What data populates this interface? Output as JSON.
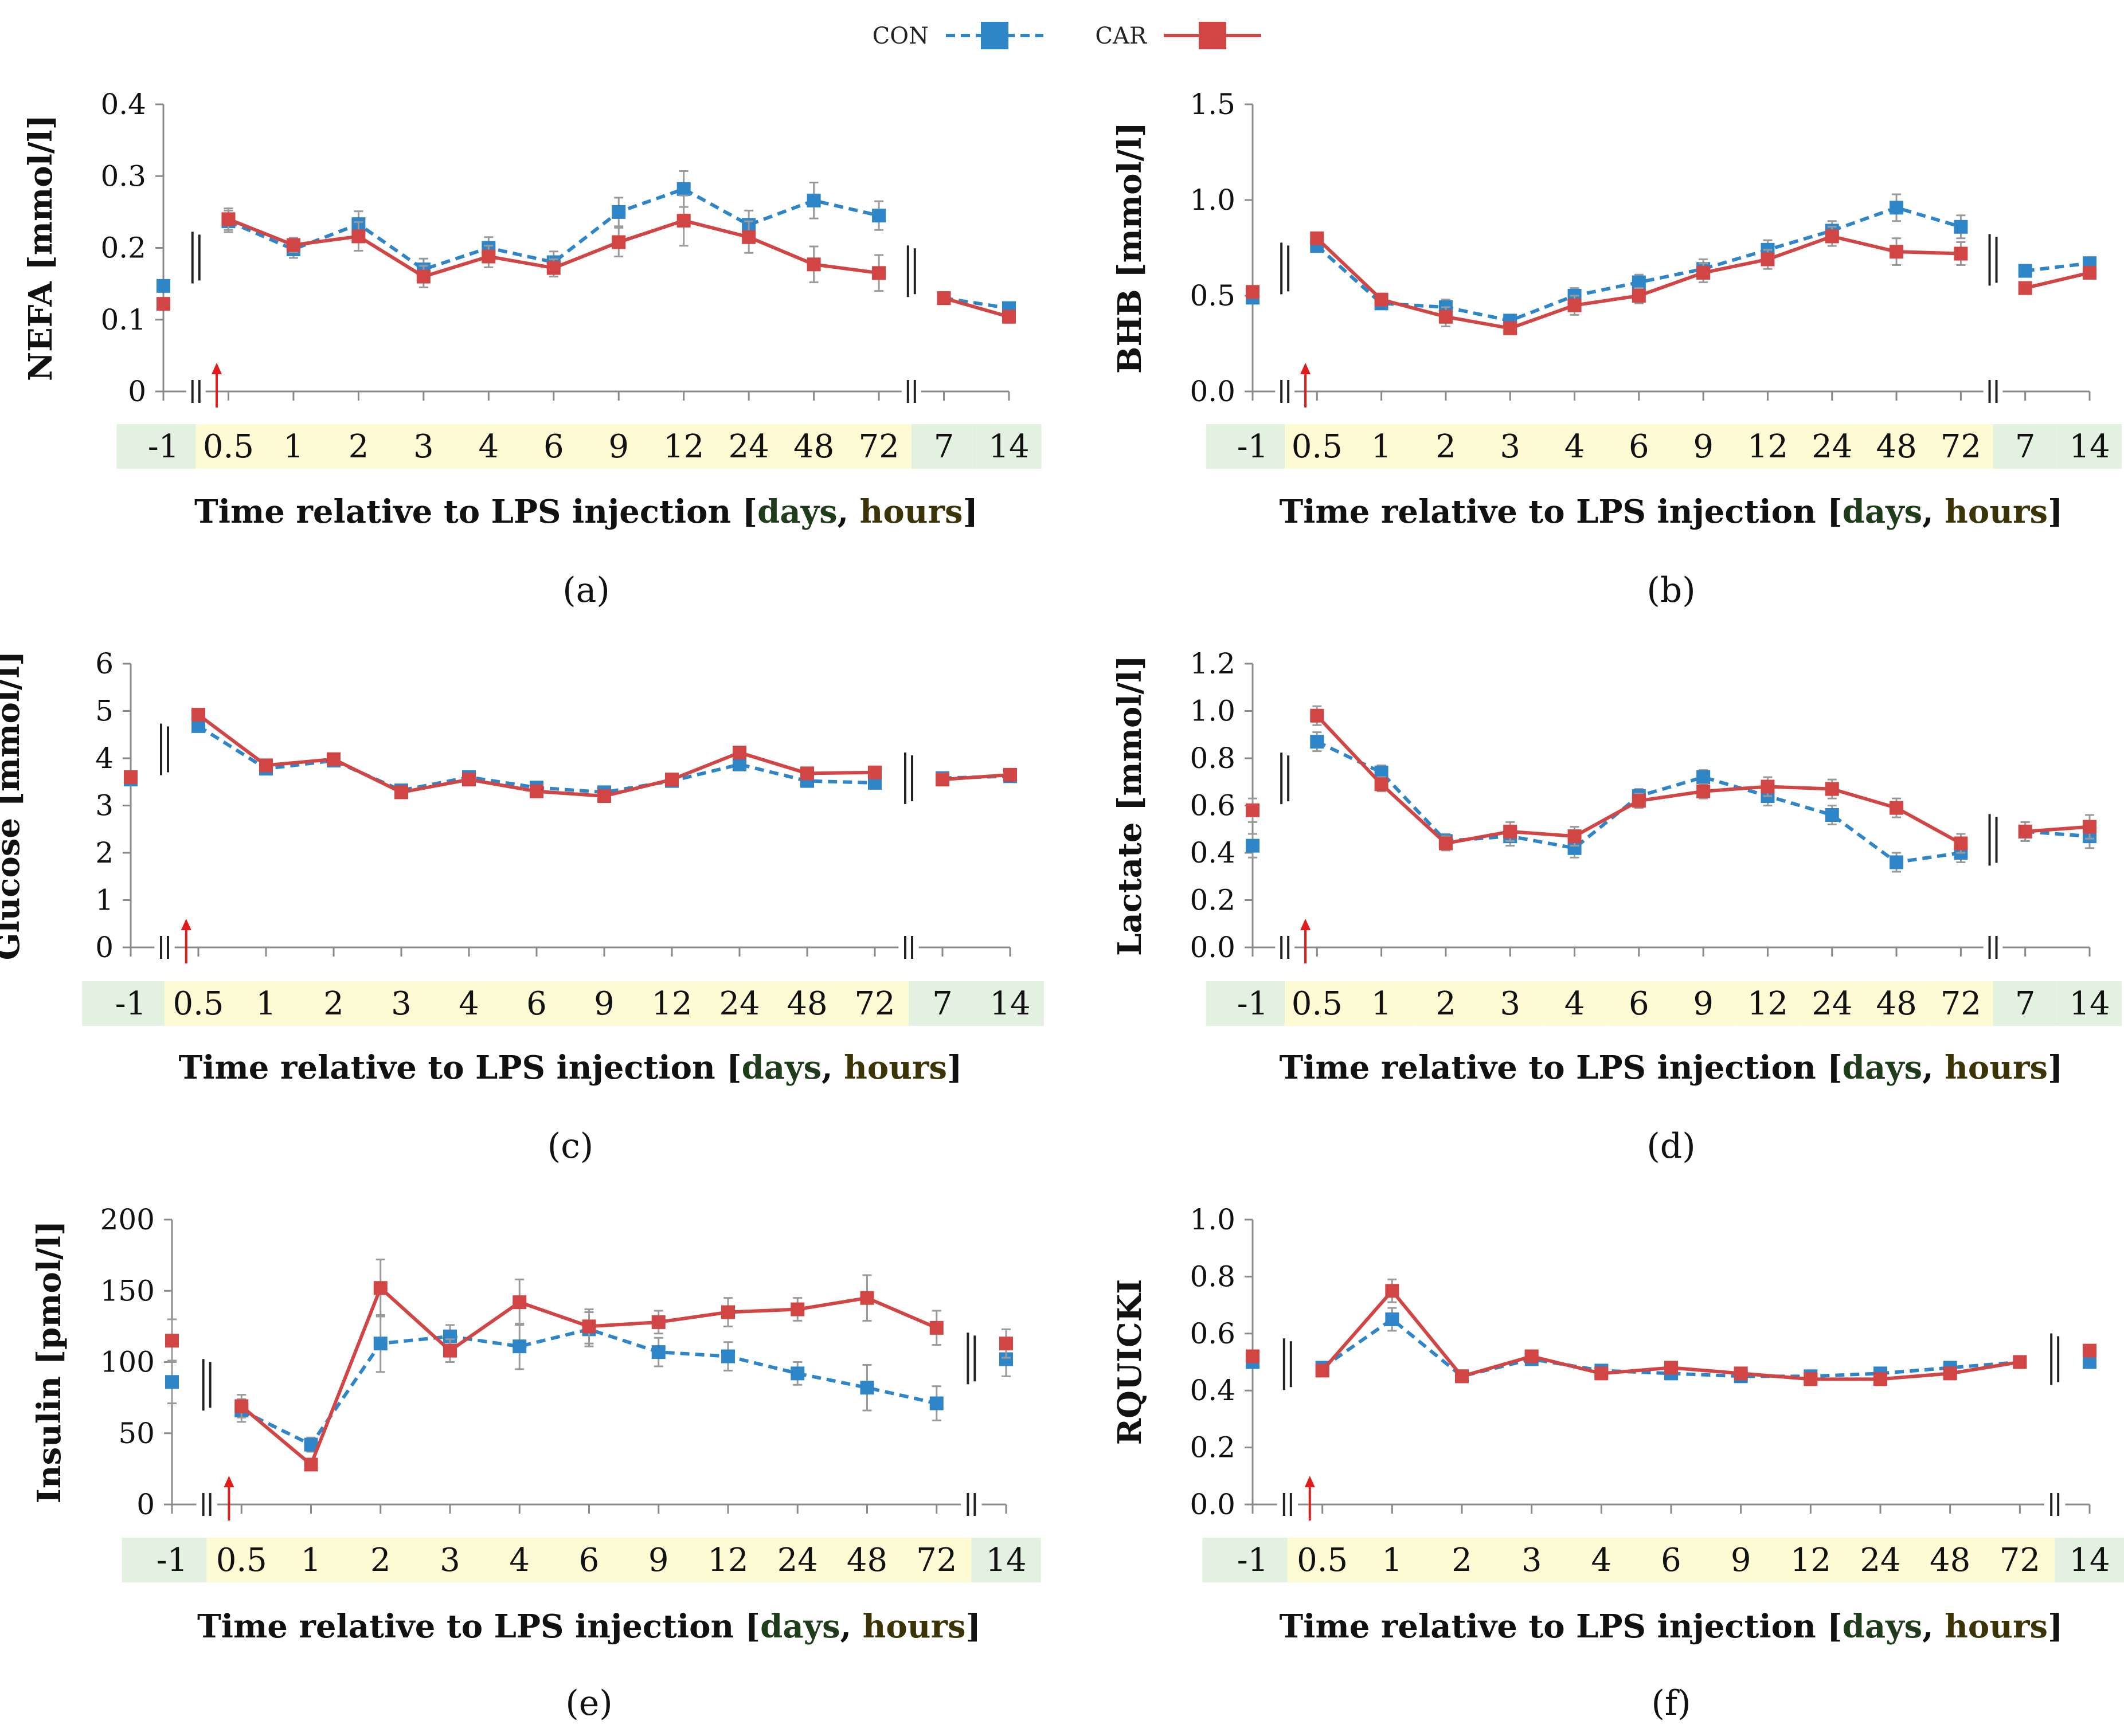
{
  "legend": {
    "series": [
      {
        "name": "CON",
        "color": "#2e86c8",
        "dash": true
      },
      {
        "name": "CAR",
        "color": "#d24545",
        "dash": false
      }
    ]
  },
  "common": {
    "xlabel_prefix": "Time relative to LPS injection [",
    "days_word": "days",
    "separator": ", ",
    "hours_word": "hours",
    "xlabel_suffix": "]",
    "day_band_color": "#e3f2e0",
    "hour_band_color": "#fdfbd4",
    "con_color": "#2e86c8",
    "car_color": "#d24545",
    "arrow_color": "#e21a1a"
  },
  "chart_data": [
    {
      "type": "line",
      "panel_label": "(a)",
      "ylabel": "NEFA [mmol/l]",
      "ylim": [
        0,
        0.4
      ],
      "yticks": [
        "0",
        "0.1",
        "0.2",
        "0.3",
        "0.4"
      ],
      "categories": [
        "-1",
        "0.5",
        "1",
        "2",
        "3",
        "4",
        "6",
        "9",
        "12",
        "24",
        "48",
        "72",
        "7",
        "14"
      ],
      "category_units": [
        "day",
        "hour",
        "hour",
        "hour",
        "hour",
        "hour",
        "hour",
        "hour",
        "hour",
        "hour",
        "hour",
        "hour",
        "day",
        "day"
      ],
      "segments": [
        [
          0,
          0
        ],
        [
          1,
          11
        ],
        [
          12,
          13
        ]
      ],
      "series": [
        {
          "name": "CON",
          "values": [
            0.147,
            0.237,
            0.198,
            0.233,
            0.17,
            0.2,
            0.18,
            0.25,
            0.282,
            0.232,
            0.266,
            0.245,
            0.13,
            0.116
          ],
          "errors": [
            0.008,
            0.015,
            0.012,
            0.018,
            0.015,
            0.015,
            0.015,
            0.02,
            0.025,
            0.02,
            0.025,
            0.02,
            0.005,
            0.005
          ]
        },
        {
          "name": "CAR",
          "values": [
            0.122,
            0.24,
            0.204,
            0.216,
            0.16,
            0.188,
            0.172,
            0.208,
            0.238,
            0.215,
            0.177,
            0.165,
            0.13,
            0.104
          ],
          "errors": [
            0.008,
            0.015,
            0.01,
            0.02,
            0.015,
            0.015,
            0.012,
            0.02,
            0.035,
            0.022,
            0.025,
            0.025,
            0.005,
            0.005
          ]
        }
      ]
    },
    {
      "type": "line",
      "panel_label": "(b)",
      "ylabel": "BHB [mmol/l]",
      "ylim": [
        0,
        1.5
      ],
      "yticks": [
        "0.0",
        "0.5",
        "1.0",
        "1.5"
      ],
      "categories": [
        "-1",
        "0.5",
        "1",
        "2",
        "3",
        "4",
        "6",
        "9",
        "12",
        "24",
        "48",
        "72",
        "7",
        "14"
      ],
      "category_units": [
        "day",
        "hour",
        "hour",
        "hour",
        "hour",
        "hour",
        "hour",
        "hour",
        "hour",
        "hour",
        "hour",
        "hour",
        "day",
        "day"
      ],
      "segments": [
        [
          0,
          0
        ],
        [
          1,
          11
        ],
        [
          12,
          13
        ]
      ],
      "series": [
        {
          "name": "CON",
          "values": [
            0.49,
            0.76,
            0.46,
            0.44,
            0.37,
            0.5,
            0.57,
            0.64,
            0.74,
            0.84,
            0.96,
            0.86,
            0.63,
            0.67
          ],
          "errors": [
            0.03,
            0.03,
            0.03,
            0.04,
            0.03,
            0.04,
            0.04,
            0.05,
            0.05,
            0.05,
            0.07,
            0.06,
            0.03,
            0.03
          ]
        },
        {
          "name": "CAR",
          "values": [
            0.52,
            0.8,
            0.48,
            0.39,
            0.33,
            0.45,
            0.5,
            0.62,
            0.69,
            0.81,
            0.73,
            0.72,
            0.54,
            0.62
          ],
          "errors": [
            0.03,
            0.03,
            0.03,
            0.05,
            0.03,
            0.05,
            0.04,
            0.05,
            0.05,
            0.05,
            0.07,
            0.06,
            0.03,
            0.03
          ]
        }
      ]
    },
    {
      "type": "line",
      "panel_label": "(c)",
      "ylabel": "Glucose [mmol/l]",
      "ylim": [
        0,
        6
      ],
      "yticks": [
        "0",
        "1",
        "2",
        "3",
        "4",
        "5",
        "6"
      ],
      "categories": [
        "-1",
        "0.5",
        "1",
        "2",
        "3",
        "4",
        "6",
        "9",
        "12",
        "24",
        "48",
        "72",
        "7",
        "14"
      ],
      "category_units": [
        "day",
        "hour",
        "hour",
        "hour",
        "hour",
        "hour",
        "hour",
        "hour",
        "hour",
        "hour",
        "hour",
        "hour",
        "day",
        "day"
      ],
      "segments": [
        [
          0,
          0
        ],
        [
          1,
          11
        ],
        [
          12,
          13
        ]
      ],
      "series": [
        {
          "name": "CON",
          "values": [
            3.55,
            4.68,
            3.78,
            3.95,
            3.32,
            3.6,
            3.38,
            3.28,
            3.52,
            3.87,
            3.52,
            3.48,
            3.58,
            3.62
          ],
          "errors": [
            0.08,
            0.08,
            0.08,
            0.08,
            0.08,
            0.08,
            0.08,
            0.08,
            0.08,
            0.1,
            0.08,
            0.08,
            0.06,
            0.06
          ]
        },
        {
          "name": "CAR",
          "values": [
            3.6,
            4.92,
            3.85,
            3.98,
            3.28,
            3.55,
            3.3,
            3.2,
            3.55,
            4.12,
            3.68,
            3.7,
            3.55,
            3.65
          ],
          "errors": [
            0.08,
            0.08,
            0.08,
            0.08,
            0.08,
            0.08,
            0.08,
            0.08,
            0.08,
            0.1,
            0.08,
            0.08,
            0.06,
            0.06
          ]
        }
      ]
    },
    {
      "type": "line",
      "panel_label": "(d)",
      "ylabel": "Lactate [mmol/l]",
      "ylim": [
        0,
        1.2
      ],
      "yticks": [
        "0.0",
        "0.2",
        "0.4",
        "0.6",
        "0.8",
        "1.0",
        "1.2"
      ],
      "categories": [
        "-1",
        "0.5",
        "1",
        "2",
        "3",
        "4",
        "6",
        "9",
        "12",
        "24",
        "48",
        "72",
        "7",
        "14"
      ],
      "category_units": [
        "day",
        "hour",
        "hour",
        "hour",
        "hour",
        "hour",
        "hour",
        "hour",
        "hour",
        "hour",
        "hour",
        "hour",
        "day",
        "day"
      ],
      "segments": [
        [
          0,
          0
        ],
        [
          1,
          11
        ],
        [
          12,
          13
        ]
      ],
      "series": [
        {
          "name": "CON",
          "values": [
            0.43,
            0.87,
            0.74,
            0.45,
            0.47,
            0.42,
            0.64,
            0.72,
            0.64,
            0.56,
            0.36,
            0.4,
            0.49,
            0.47
          ],
          "errors": [
            0.05,
            0.04,
            0.03,
            0.03,
            0.04,
            0.04,
            0.03,
            0.03,
            0.04,
            0.04,
            0.04,
            0.04,
            0.04,
            0.05
          ]
        },
        {
          "name": "CAR",
          "values": [
            0.58,
            0.98,
            0.69,
            0.44,
            0.49,
            0.47,
            0.62,
            0.66,
            0.68,
            0.67,
            0.59,
            0.44,
            0.49,
            0.51
          ],
          "errors": [
            0.05,
            0.04,
            0.03,
            0.03,
            0.04,
            0.04,
            0.03,
            0.03,
            0.04,
            0.04,
            0.04,
            0.04,
            0.04,
            0.05
          ]
        }
      ]
    },
    {
      "type": "line",
      "panel_label": "(e)",
      "ylabel": "Insulin [pmol/l]",
      "ylim": [
        0,
        200
      ],
      "yticks": [
        "0",
        "50",
        "100",
        "150",
        "200"
      ],
      "categories": [
        "-1",
        "0.5",
        "1",
        "2",
        "3",
        "4",
        "6",
        "9",
        "12",
        "24",
        "48",
        "72",
        "14"
      ],
      "category_units": [
        "day",
        "hour",
        "hour",
        "hour",
        "hour",
        "hour",
        "hour",
        "hour",
        "hour",
        "hour",
        "hour",
        "hour",
        "day"
      ],
      "segments": [
        [
          0,
          0
        ],
        [
          1,
          11
        ],
        [
          12,
          12
        ]
      ],
      "series": [
        {
          "name": "CON",
          "values": [
            86,
            66,
            42,
            113,
            118,
            111,
            123,
            107,
            104,
            92,
            82,
            71,
            102
          ],
          "errors": [
            15,
            8,
            5,
            20,
            8,
            16,
            12,
            10,
            10,
            8,
            16,
            12,
            12
          ]
        },
        {
          "name": "CAR",
          "values": [
            115,
            69,
            28,
            152,
            108,
            142,
            125,
            128,
            135,
            137,
            145,
            124,
            113
          ],
          "errors": [
            15,
            8,
            3,
            20,
            8,
            16,
            12,
            8,
            10,
            8,
            16,
            12,
            10
          ]
        }
      ]
    },
    {
      "type": "line",
      "panel_label": "(f)",
      "ylabel": "RQUICKI",
      "ylim": [
        0,
        1
      ],
      "yticks": [
        "0.0",
        "0.2",
        "0.4",
        "0.6",
        "0.8",
        "1.0"
      ],
      "categories": [
        "-1",
        "0.5",
        "1",
        "2",
        "3",
        "4",
        "6",
        "9",
        "12",
        "24",
        "48",
        "72",
        "14"
      ],
      "category_units": [
        "day",
        "hour",
        "hour",
        "hour",
        "hour",
        "hour",
        "hour",
        "hour",
        "hour",
        "hour",
        "hour",
        "hour",
        "day"
      ],
      "segments": [
        [
          0,
          0
        ],
        [
          1,
          11
        ],
        [
          12,
          12
        ]
      ],
      "series": [
        {
          "name": "CON",
          "values": [
            0.5,
            0.48,
            0.65,
            0.45,
            0.51,
            0.47,
            0.46,
            0.45,
            0.45,
            0.46,
            0.48,
            0.5,
            0.5
          ],
          "errors": [
            0.02,
            0.02,
            0.04,
            0.01,
            0.01,
            0.01,
            0.01,
            0.01,
            0.01,
            0.01,
            0.01,
            0.01,
            0.02
          ]
        },
        {
          "name": "CAR",
          "values": [
            0.52,
            0.47,
            0.75,
            0.45,
            0.52,
            0.46,
            0.48,
            0.46,
            0.44,
            0.44,
            0.46,
            0.5,
            0.54
          ],
          "errors": [
            0.02,
            0.02,
            0.04,
            0.01,
            0.01,
            0.01,
            0.01,
            0.01,
            0.01,
            0.01,
            0.01,
            0.01,
            0.02
          ]
        }
      ]
    }
  ]
}
